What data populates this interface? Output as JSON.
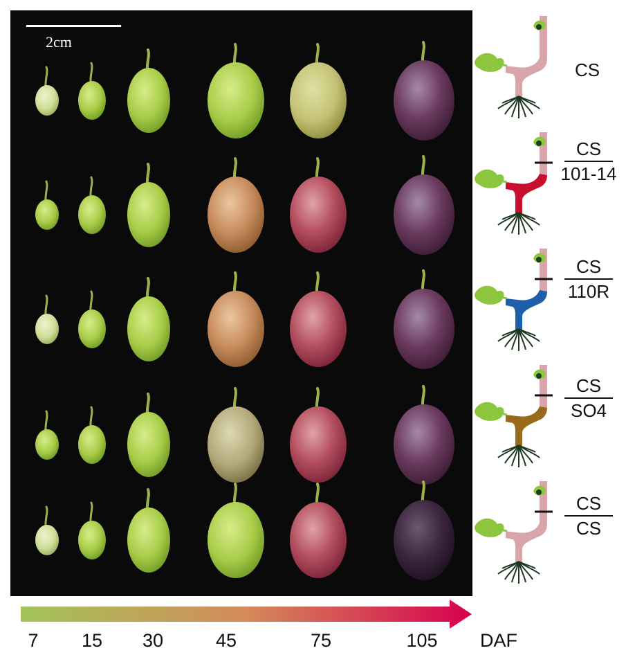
{
  "scale_bar": {
    "label": "2cm"
  },
  "graft_labels": [
    {
      "type": "single",
      "text": "CS"
    },
    {
      "type": "fraction",
      "scion": "CS",
      "rootstock": "101-14"
    },
    {
      "type": "fraction",
      "scion": "CS",
      "rootstock": "110R"
    },
    {
      "type": "fraction",
      "scion": "CS",
      "rootstock": "SO4"
    },
    {
      "type": "fraction",
      "scion": "CS",
      "rootstock": "CS"
    }
  ],
  "rootstock_colors": {
    "CS": "#d9a5ad",
    "101-14": "#c8102e",
    "110R": "#1f5ea8",
    "SO4": "#9a6a1c",
    "CS/CS": "#d9a5ad",
    "leaf": "#8cc63f",
    "roots": "#1e3820"
  },
  "timeline": {
    "ticks": [
      "7",
      "15",
      "30",
      "45",
      "75",
      "105"
    ],
    "unit": "DAF",
    "gradient_start": "#a3c45a",
    "gradient_end": "#d6004e"
  },
  "berry_colors": {
    "green": "#a9cf4f",
    "yellow_green": "#c8d86e",
    "pale": "#d7e3a0",
    "blush": "#c98a5c",
    "red": "#b4465a",
    "purple": "#5e3050",
    "dark": "#3a2338"
  }
}
